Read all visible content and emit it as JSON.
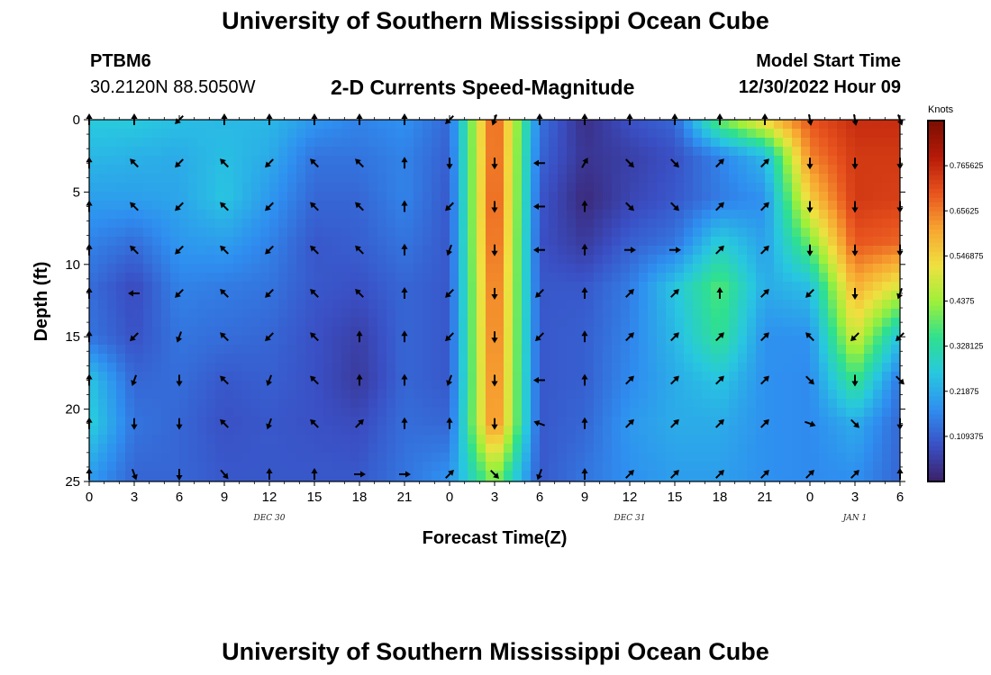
{
  "header": {
    "title": "University of Southern Mississippi Ocean Cube",
    "station": "PTBM6",
    "coords": "30.2120N  88.5050W",
    "subtitle": "2-D Currents Speed-Magnitude",
    "model_start_label": "Model Start Time",
    "model_start_value": "12/30/2022 Hour 09"
  },
  "footer": {
    "title": "University of Southern Mississippi Ocean Cube"
  },
  "colors": {
    "colormap": [
      "#3b1f66",
      "#3a4fc4",
      "#2f8ef0",
      "#28c7e0",
      "#2fe08f",
      "#9ef03a",
      "#f0e040",
      "#f7a531",
      "#e8541e",
      "#b71a08",
      "#7a0e02"
    ]
  },
  "chart_data": {
    "type": "heatmap",
    "title": "2-D Currents Speed-Magnitude",
    "xlabel": "Forecast Time(Z)",
    "ylabel": "Depth (ft)",
    "x_hours": [
      0,
      3,
      6,
      9,
      12,
      15,
      18,
      21,
      24,
      27,
      30,
      33,
      36,
      39,
      42,
      45,
      48,
      51,
      54
    ],
    "x_tick_labels": [
      "0",
      "3",
      "6",
      "9",
      "12",
      "15",
      "18",
      "21",
      "0",
      "3",
      "6",
      "9",
      "12",
      "15",
      "18",
      "21",
      "0",
      "3",
      "6"
    ],
    "date_labels": [
      {
        "label": "DEC 30",
        "hour": 12
      },
      {
        "label": "DEC 31",
        "hour": 36
      },
      {
        "label": "JAN 1",
        "hour": 51
      }
    ],
    "y_tick_values": [
      0,
      5,
      10,
      15,
      20,
      25
    ],
    "ylim": [
      0,
      25
    ],
    "depths": [
      0,
      2.5,
      5.5,
      8.5,
      11.5,
      15,
      18,
      21,
      24.5
    ],
    "speed_knots": [
      [
        0.27,
        0.27,
        0.25,
        0.24,
        0.24,
        0.19,
        0.16,
        0.18,
        0.12,
        0.72,
        0.14,
        0.03,
        0.09,
        0.12,
        0.4,
        0.55,
        0.7,
        0.76,
        0.76
      ],
      [
        0.24,
        0.23,
        0.22,
        0.25,
        0.22,
        0.14,
        0.14,
        0.16,
        0.11,
        0.72,
        0.12,
        0.04,
        0.06,
        0.09,
        0.16,
        0.24,
        0.65,
        0.74,
        0.74
      ],
      [
        0.2,
        0.2,
        0.21,
        0.26,
        0.19,
        0.12,
        0.12,
        0.16,
        0.1,
        0.73,
        0.1,
        0.02,
        0.07,
        0.1,
        0.15,
        0.18,
        0.55,
        0.74,
        0.73
      ],
      [
        0.16,
        0.13,
        0.19,
        0.2,
        0.16,
        0.1,
        0.11,
        0.14,
        0.1,
        0.72,
        0.09,
        0.05,
        0.11,
        0.14,
        0.28,
        0.2,
        0.4,
        0.7,
        0.68
      ],
      [
        0.13,
        0.08,
        0.16,
        0.15,
        0.14,
        0.1,
        0.09,
        0.12,
        0.1,
        0.7,
        0.1,
        0.1,
        0.15,
        0.26,
        0.38,
        0.22,
        0.25,
        0.6,
        0.5
      ],
      [
        0.14,
        0.09,
        0.14,
        0.13,
        0.12,
        0.09,
        0.06,
        0.12,
        0.1,
        0.69,
        0.1,
        0.11,
        0.16,
        0.24,
        0.35,
        0.18,
        0.18,
        0.5,
        0.25
      ],
      [
        0.26,
        0.12,
        0.13,
        0.1,
        0.11,
        0.09,
        0.05,
        0.12,
        0.1,
        0.68,
        0.1,
        0.11,
        0.17,
        0.22,
        0.26,
        0.18,
        0.17,
        0.36,
        0.14
      ],
      [
        0.28,
        0.14,
        0.12,
        0.09,
        0.1,
        0.09,
        0.08,
        0.13,
        0.12,
        0.67,
        0.1,
        0.12,
        0.19,
        0.22,
        0.22,
        0.18,
        0.17,
        0.22,
        0.12
      ],
      [
        0.2,
        0.12,
        0.12,
        0.1,
        0.1,
        0.1,
        0.1,
        0.14,
        0.18,
        0.44,
        0.1,
        0.14,
        0.18,
        0.2,
        0.2,
        0.18,
        0.17,
        0.18,
        0.12
      ]
    ],
    "arrow_depths": [
      0,
      3,
      6,
      9,
      12,
      15,
      18,
      21,
      24.5
    ],
    "arrow_directions_deg": [
      [
        0,
        0,
        225,
        0,
        0,
        0,
        0,
        0,
        225,
        200,
        0,
        0,
        0,
        0,
        0,
        0,
        170,
        170,
        160
      ],
      [
        0,
        315,
        225,
        315,
        225,
        315,
        315,
        0,
        180,
        180,
        270,
        30,
        135,
        135,
        45,
        45,
        180,
        180,
        180
      ],
      [
        0,
        315,
        225,
        315,
        225,
        315,
        315,
        0,
        225,
        180,
        270,
        0,
        135,
        135,
        45,
        45,
        180,
        180,
        180
      ],
      [
        0,
        315,
        225,
        315,
        225,
        315,
        315,
        0,
        200,
        180,
        270,
        0,
        90,
        90,
        45,
        45,
        180,
        180,
        180
      ],
      [
        0,
        270,
        225,
        315,
        225,
        315,
        315,
        0,
        225,
        180,
        225,
        0,
        45,
        45,
        0,
        45,
        225,
        180,
        200
      ],
      [
        0,
        225,
        200,
        315,
        225,
        315,
        0,
        0,
        225,
        180,
        225,
        0,
        45,
        45,
        45,
        45,
        315,
        225,
        225
      ],
      [
        0,
        200,
        180,
        315,
        200,
        315,
        0,
        0,
        200,
        180,
        270,
        0,
        45,
        45,
        45,
        45,
        135,
        180,
        135
      ],
      [
        0,
        180,
        180,
        315,
        200,
        315,
        45,
        0,
        0,
        180,
        290,
        0,
        45,
        45,
        45,
        45,
        110,
        135,
        180
      ],
      [
        0,
        160,
        180,
        140,
        0,
        0,
        90,
        90,
        45,
        135,
        200,
        0,
        45,
        45,
        45,
        45,
        45,
        45,
        0
      ]
    ],
    "colorbar": {
      "unit": "Knots",
      "range": [
        0,
        0.875
      ],
      "tick_labels": [
        "0.765625",
        "0.65625",
        "0.546875",
        "0.4375",
        "0.328125",
        "0.21875",
        "0.109375"
      ],
      "tick_values": [
        0.765625,
        0.65625,
        0.546875,
        0.4375,
        0.328125,
        0.21875,
        0.109375
      ]
    }
  }
}
